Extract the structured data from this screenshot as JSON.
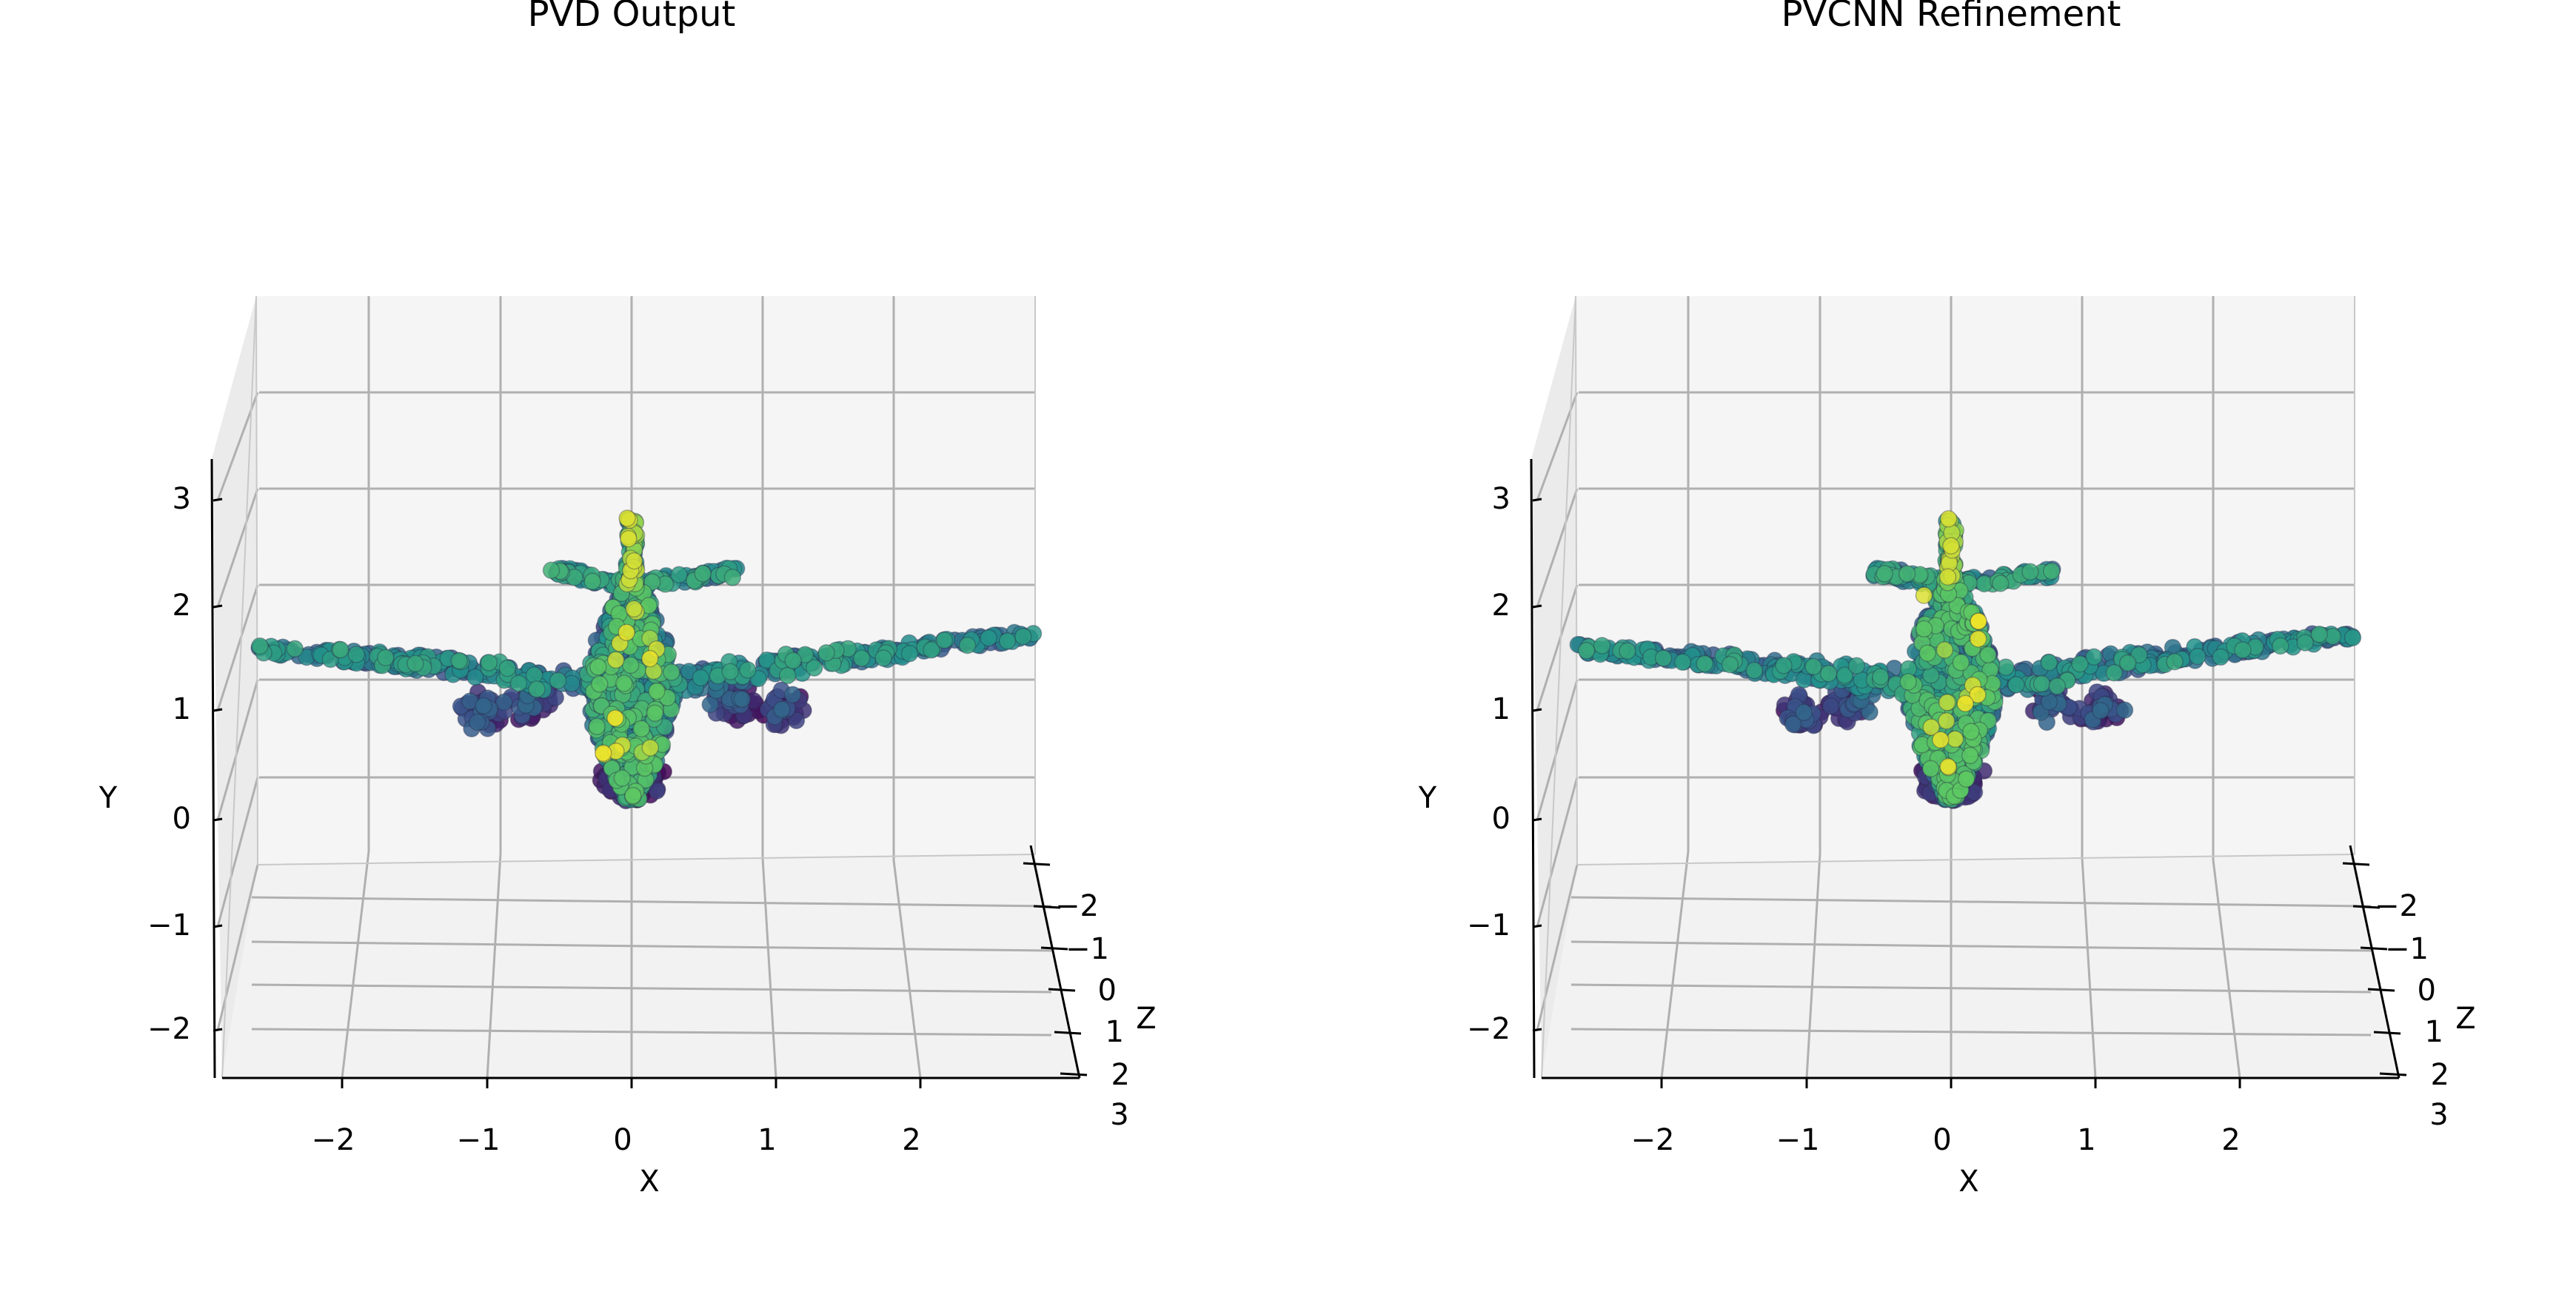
{
  "chart_data": [
    {
      "type": "scatter",
      "title": "PVD Output",
      "xlabel": "X",
      "ylabel": "Y",
      "zlabel": "Z",
      "x_ticks": [
        "−2",
        "−1",
        "0",
        "1",
        "2"
      ],
      "y_ticks": [
        "−2",
        "−1",
        "0",
        "1",
        "2",
        "3"
      ],
      "z_ticks": [
        "−2",
        "−1",
        "0",
        "1",
        "2",
        "3"
      ],
      "xlim": [
        -2.8,
        2.9
      ],
      "ylim": [
        -2.4,
        3.4
      ],
      "zlim": [
        -2.4,
        2.4
      ],
      "projection": "3d",
      "grid": true,
      "colormap": "viridis",
      "subject": "airplane point cloud (front view)"
    },
    {
      "type": "scatter",
      "title": "PVCNN Refinement",
      "xlabel": "X",
      "ylabel": "Y",
      "zlabel": "Z",
      "x_ticks": [
        "−2",
        "−1",
        "0",
        "1",
        "2"
      ],
      "y_ticks": [
        "−2",
        "−1",
        "0",
        "1",
        "2",
        "3"
      ],
      "z_ticks": [
        "−2",
        "−1",
        "0",
        "1",
        "2",
        "3"
      ],
      "xlim": [
        -2.8,
        2.9
      ],
      "ylim": [
        -2.4,
        3.4
      ],
      "zlim": [
        -2.4,
        2.4
      ],
      "projection": "3d",
      "grid": true,
      "colormap": "viridis",
      "subject": "airplane point cloud (front view)"
    }
  ]
}
